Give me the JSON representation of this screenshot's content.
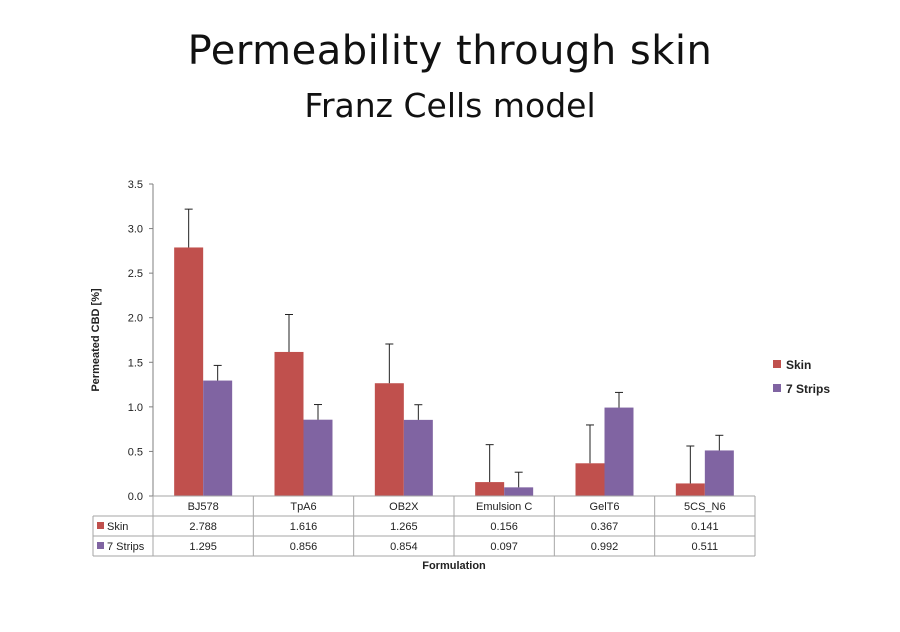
{
  "title": "Permeability through skin",
  "subtitle": "Franz Cells model",
  "chart_data": {
    "type": "bar",
    "categories": [
      "BJ578",
      "TpA6",
      "OB2X",
      "Emulsion C",
      "GelT6",
      "5CS_N6"
    ],
    "series": [
      {
        "name": "Skin",
        "color": "#c0504d",
        "values": [
          2.788,
          1.616,
          1.265,
          0.156,
          0.367,
          0.141
        ],
        "error": [
          0.43,
          0.42,
          0.44,
          0.42,
          0.43,
          0.42
        ]
      },
      {
        "name": "7 Strips",
        "color": "#8064a2",
        "values": [
          1.295,
          0.856,
          0.854,
          0.097,
          0.992,
          0.511
        ],
        "error": [
          0.17,
          0.17,
          0.17,
          0.17,
          0.17,
          0.17
        ]
      }
    ],
    "ylabel": "Permeated CBD [%]",
    "xlabel": "Formulation",
    "ylim": [
      0,
      3.5
    ],
    "yticks": [
      "0.0",
      "0.5",
      "1.0",
      "1.5",
      "2.0",
      "2.5",
      "3.0",
      "3.5"
    ],
    "data_table": [
      {
        "label": "Skin",
        "cells": [
          "2.788",
          "1.616",
          "1.265",
          "0.156",
          "0.367",
          "0.141"
        ]
      },
      {
        "label": "7 Strips",
        "cells": [
          "1.295",
          "0.856",
          "0.854",
          "0.097",
          "0.992",
          "0.511"
        ]
      }
    ],
    "legend_position": "right",
    "grid": false
  }
}
